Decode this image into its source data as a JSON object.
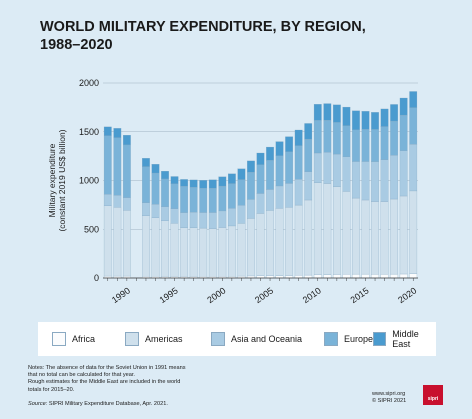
{
  "header": {
    "title_line1": "WORLD MILITARY EXPENDITURE, BY REGION,",
    "title_line2": "1988–2020"
  },
  "legend": [
    {
      "label": "Africa",
      "color": "#fbfcfd"
    },
    {
      "label": "Americas",
      "color": "#cfe0ec"
    },
    {
      "label": "Asia and Oceania",
      "color": "#a9cbe3"
    },
    {
      "label": "Europe",
      "color": "#7ab3d8"
    },
    {
      "label": "Middle East",
      "color": "#4a9bcf"
    }
  ],
  "notes": {
    "line1": "Notes: The absence of data for the Soviet Union in 1991 means",
    "line2": "that no total can be calculated for that year.",
    "line3": "Rough estimates for the Middle East are included in the world",
    "line4": "totals for 2015–20."
  },
  "source": {
    "label": "Source:",
    "text": "SIPRI Military Expenditure Database, Apr. 2021."
  },
  "footer": {
    "site": "www.sipri.org",
    "copyright": "© SIPRI 2021",
    "logo_text": "sipri"
  },
  "chart_data": {
    "type": "bar",
    "stacked": true,
    "title": "WORLD MILITARY EXPENDITURE, BY REGION, 1988–2020",
    "ylabel_line1": "Military expenditure",
    "ylabel_line2": "(constant 2019 US$ billion)",
    "xlabel": "",
    "ylim": [
      0,
      2000
    ],
    "yticks": [
      0,
      500,
      1000,
      1500,
      2000
    ],
    "xtick_labels": [
      "1990",
      "1995",
      "2000",
      "2005",
      "2010",
      "2015",
      "2020"
    ],
    "grid": true,
    "categories": [
      1988,
      1989,
      1990,
      1991,
      1992,
      1993,
      1994,
      1995,
      1996,
      1997,
      1998,
      1999,
      2000,
      2001,
      2002,
      2003,
      2004,
      2005,
      2006,
      2007,
      2008,
      2009,
      2010,
      2011,
      2012,
      2013,
      2014,
      2015,
      2016,
      2017,
      2018,
      2019,
      2020
    ],
    "series": [
      {
        "name": "Africa",
        "color": "#fbfcfd",
        "values": [
          20,
          20,
          20,
          null,
          18,
          17,
          16,
          16,
          16,
          16,
          17,
          17,
          18,
          19,
          20,
          21,
          22,
          23,
          24,
          25,
          28,
          30,
          32,
          34,
          36,
          38,
          40,
          40,
          39,
          39,
          40,
          41,
          43
        ]
      },
      {
        "name": "Americas",
        "color": "#cfe0ec",
        "values": [
          720,
          705,
          675,
          null,
          620,
          600,
          570,
          545,
          500,
          500,
          495,
          490,
          500,
          515,
          540,
          590,
          640,
          670,
          690,
          700,
          720,
          770,
          945,
          935,
          900,
          850,
          780,
          760,
          745,
          745,
          770,
          800,
          850
        ]
      },
      {
        "name": "Asia and Oceania",
        "color": "#a9cbe3",
        "values": [
          120,
          125,
          130,
          null,
          135,
          140,
          145,
          150,
          155,
          160,
          160,
          165,
          170,
          180,
          185,
          195,
          205,
          215,
          230,
          245,
          265,
          290,
          305,
          320,
          335,
          355,
          375,
          395,
          410,
          430,
          450,
          465,
          480
        ]
      },
      {
        "name": "Europe",
        "color": "#7ab3d8",
        "values": [
          600,
          590,
          540,
          null,
          370,
          320,
          285,
          255,
          270,
          255,
          250,
          250,
          255,
          255,
          265,
          280,
          295,
          300,
          310,
          325,
          345,
          335,
          335,
          330,
          325,
          320,
          325,
          330,
          330,
          340,
          350,
          365,
          375
        ]
      },
      {
        "name": "Middle East",
        "color": "#4a9bcf",
        "values": [
          90,
          95,
          100,
          null,
          85,
          90,
          80,
          75,
          70,
          75,
          80,
          85,
          95,
          100,
          110,
          115,
          120,
          135,
          145,
          155,
          160,
          160,
          165,
          170,
          180,
          190,
          195,
          185,
          175,
          180,
          170,
          175,
          165
        ]
      }
    ]
  }
}
